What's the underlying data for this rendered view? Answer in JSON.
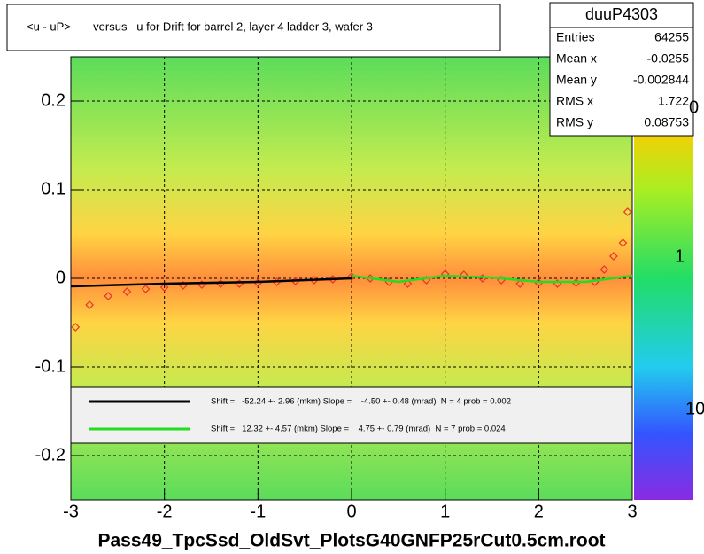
{
  "chart_data": {
    "type": "profile",
    "title": "<u - uP>       versus   u for Drift for barrel 2, layer 4 ladder 3, wafer 3",
    "x_label": "Pass49_TpcSsd_OldSvt_PlotsG40GNFP25rCut0.5cm.root",
    "xlim": [
      -3,
      3
    ],
    "ylim": [
      -0.25,
      0.25
    ],
    "xticks": [
      -3,
      -2,
      -1,
      0,
      1,
      2,
      3
    ],
    "yticks": [
      -0.2,
      -0.1,
      0,
      0.1,
      0.2
    ],
    "grid": true,
    "stats": {
      "title": "duuP4303",
      "rows": [
        [
          "Entries",
          "64255"
        ],
        [
          "Mean x",
          "-0.0255"
        ],
        [
          "Mean y",
          "-0.002844"
        ],
        [
          "RMS x",
          "1.722"
        ],
        [
          "RMS y",
          "0.08753"
        ]
      ]
    },
    "palette_labels": [
      "0",
      "1",
      "10"
    ],
    "profile": {
      "color": "#e8312a",
      "x": [
        -2.95,
        -2.8,
        -2.6,
        -2.4,
        -2.2,
        -2.0,
        -1.8,
        -1.6,
        -1.4,
        -1.2,
        -1.0,
        -0.8,
        -0.6,
        -0.4,
        -0.2,
        0.0,
        0.2,
        0.4,
        0.6,
        0.8,
        1.0,
        1.2,
        1.4,
        1.6,
        1.8,
        2.0,
        2.2,
        2.4,
        2.6,
        2.7,
        2.8,
        2.9,
        2.95
      ],
      "values": [
        -0.055,
        -0.03,
        -0.02,
        -0.015,
        -0.012,
        -0.01,
        -0.008,
        -0.007,
        -0.006,
        -0.006,
        -0.005,
        -0.004,
        -0.003,
        -0.002,
        -0.001,
        0.002,
        0.0,
        -0.004,
        -0.006,
        -0.002,
        0.005,
        0.004,
        0.0,
        -0.002,
        -0.006,
        -0.005,
        -0.006,
        -0.005,
        -0.004,
        0.01,
        0.025,
        0.04,
        0.075
      ]
    },
    "series": [
      {
        "name": "Shift =   -52.24 +- 2.96 (mkm) Slope =    -4.50 +- 0.48 (mrad)  N = 4 prob = 0.002",
        "color": "#000000",
        "x": [
          -3,
          -2,
          -1,
          0
        ],
        "values": [
          -0.009,
          -0.006,
          -0.004,
          0.0
        ]
      },
      {
        "name": "Shift =   12.32 +- 4.57 (mkm) Slope =    4.75 +- 0.79 (mrad)  N = 7 prob = 0.024",
        "color": "#22dd22",
        "x": [
          0,
          0.5,
          1,
          1.5,
          2,
          2.5,
          3
        ],
        "values": [
          0.003,
          -0.004,
          0.003,
          0.001,
          -0.004,
          -0.004,
          0.003
        ]
      }
    ]
  }
}
